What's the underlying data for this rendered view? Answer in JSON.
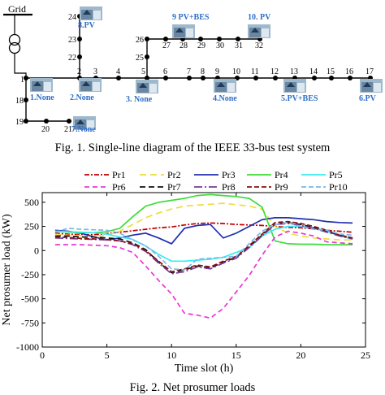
{
  "diagram": {
    "grid_label": "Grid",
    "bus_numbers": [
      "1",
      "2",
      "3",
      "4",
      "5",
      "6",
      "7",
      "8",
      "9",
      "10",
      "11",
      "12",
      "13",
      "14",
      "15",
      "16",
      "17",
      "18",
      "19",
      "20",
      "21",
      "22",
      "23",
      "24",
      "25",
      "26",
      "27",
      "28",
      "29",
      "30",
      "31",
      "32"
    ],
    "prosumers": [
      {
        "id": "1",
        "label": "1.None"
      },
      {
        "id": "2",
        "label": "2.None"
      },
      {
        "id": "3",
        "label": "3.  None"
      },
      {
        "id": "4",
        "label": "4.None"
      },
      {
        "id": "5",
        "label": "5.PV+BES"
      },
      {
        "id": "6",
        "label": "6.PV"
      },
      {
        "id": "7",
        "label": "7.None"
      },
      {
        "id": "8",
        "label": "8.PV"
      },
      {
        "id": "9",
        "label": "9  PV+BES"
      },
      {
        "id": "10",
        "label": "10. PV"
      }
    ]
  },
  "fig1_caption": "Fig. 1. Single-line diagram of the IEEE 33-bus test system",
  "fig2_caption": "Fig. 2. Net prosumer loads",
  "chart_data": {
    "type": "line",
    "xlabel": "Time slot (h)",
    "ylabel": "Net prosumer load (kW)",
    "xlim": [
      0,
      25
    ],
    "ylim": [
      -1000,
      600
    ],
    "xticks": [
      0,
      5,
      10,
      15,
      20,
      25
    ],
    "yticks": [
      500,
      250,
      0,
      -250,
      -500,
      -750,
      -1000
    ],
    "grid": false,
    "legend_position": "top",
    "x": [
      1,
      2,
      3,
      4,
      5,
      6,
      7,
      8,
      9,
      10,
      11,
      12,
      13,
      14,
      15,
      16,
      17,
      18,
      19,
      20,
      21,
      22,
      23,
      24
    ],
    "series": [
      {
        "name": "Pr1",
        "color": "#c00000",
        "dash": "6,2,2,2",
        "values": [
          180,
          170,
          165,
          165,
          175,
          190,
          205,
          220,
          235,
          245,
          265,
          280,
          285,
          280,
          270,
          265,
          260,
          250,
          240,
          235,
          225,
          210,
          200,
          190
        ]
      },
      {
        "name": "Pr2",
        "color": "#f0dc3c",
        "dash": "8,5",
        "values": [
          170,
          160,
          155,
          150,
          160,
          200,
          270,
          340,
          390,
          430,
          460,
          470,
          480,
          490,
          475,
          460,
          430,
          250,
          180,
          150,
          130,
          120,
          110,
          110
        ]
      },
      {
        "name": "Pr3",
        "color": "#1f2fb0",
        "dash": "",
        "values": [
          210,
          200,
          180,
          140,
          110,
          130,
          160,
          180,
          130,
          70,
          230,
          260,
          270,
          130,
          180,
          250,
          320,
          340,
          340,
          330,
          320,
          300,
          290,
          285
        ]
      },
      {
        "name": "Pr4",
        "color": "#3ddc3a",
        "dash": "",
        "values": [
          200,
          190,
          185,
          185,
          195,
          230,
          350,
          460,
          500,
          520,
          540,
          570,
          580,
          570,
          560,
          540,
          450,
          100,
          70,
          65,
          65,
          60,
          60,
          60
        ]
      },
      {
        "name": "Pr5",
        "color": "#38ecf0",
        "dash": "",
        "values": [
          200,
          195,
          190,
          185,
          170,
          140,
          115,
          45,
          -40,
          -110,
          -110,
          -100,
          -90,
          -70,
          -20,
          30,
          150,
          220,
          250,
          250,
          240,
          200,
          150,
          120
        ]
      },
      {
        "name": "Pr6",
        "color": "#e837d8",
        "dash": "6,4",
        "values": [
          60,
          60,
          60,
          55,
          50,
          30,
          -20,
          -160,
          -310,
          -450,
          -650,
          -670,
          -700,
          -600,
          -430,
          -260,
          -50,
          140,
          200,
          180,
          150,
          90,
          80,
          70
        ]
      },
      {
        "name": "Pr7",
        "color": "#111111",
        "dash": "7,4",
        "values": [
          150,
          150,
          140,
          140,
          130,
          120,
          80,
          10,
          -120,
          -230,
          -200,
          -160,
          -180,
          -120,
          -70,
          40,
          160,
          280,
          290,
          270,
          240,
          200,
          160,
          130
        ]
      },
      {
        "name": "Pr8",
        "color": "#7a3a98",
        "dash": "10,3,2,3",
        "values": [
          130,
          125,
          120,
          115,
          110,
          100,
          60,
          -10,
          -130,
          -240,
          -220,
          -170,
          -190,
          -130,
          -80,
          30,
          150,
          270,
          280,
          260,
          230,
          190,
          150,
          120
        ]
      },
      {
        "name": "Pr9",
        "color": "#8b0f0f",
        "dash": "6,3",
        "values": [
          140,
          135,
          125,
          120,
          115,
          100,
          70,
          0,
          -110,
          -220,
          -190,
          -150,
          -170,
          -110,
          -60,
          50,
          170,
          290,
          300,
          280,
          250,
          210,
          160,
          130
        ]
      },
      {
        "name": "Pr10",
        "color": "#7ab8e8",
        "dash": "6,3",
        "values": [
          190,
          230,
          220,
          215,
          210,
          180,
          110,
          50,
          -60,
          -190,
          -200,
          -90,
          -80,
          -70,
          -60,
          70,
          200,
          270,
          290,
          250,
          220,
          210,
          170,
          160
        ]
      }
    ]
  }
}
